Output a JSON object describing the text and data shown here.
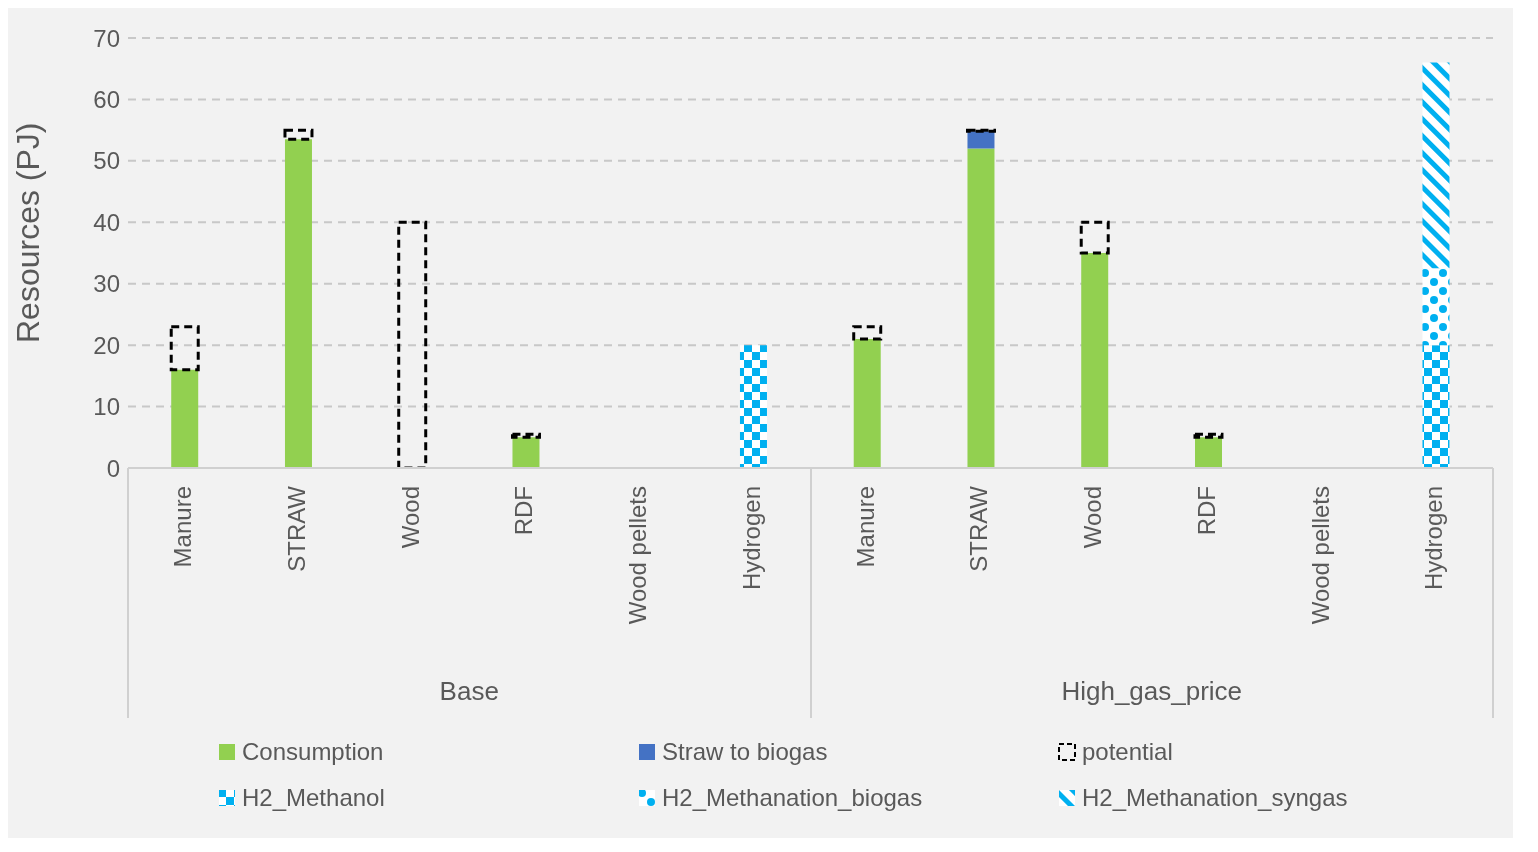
{
  "chart_data": {
    "type": "bar",
    "stacked": true,
    "ylabel": "Resources (PJ)",
    "categories": [
      "Manure",
      "STRAW",
      "Wood",
      "RDF",
      "Wood pellets",
      "Hydrogen",
      "Manure",
      "STRAW",
      "Wood",
      "RDF",
      "Wood pellets",
      "Hydrogen"
    ],
    "series": [
      {
        "name": "Consumption",
        "color": "#92d050",
        "values": [
          16,
          53.5,
          0,
          5,
          0,
          0,
          21,
          52,
          35,
          5,
          0,
          0
        ]
      },
      {
        "name": "Straw to biogas",
        "color": "#4472c4",
        "values": [
          0,
          0,
          0,
          0,
          0,
          0,
          0,
          2.8,
          0,
          0,
          0,
          0
        ]
      },
      {
        "name": "potential",
        "color": "#000000",
        "line_style": "dashed",
        "values": [
          7,
          1.5,
          40,
          0.5,
          0,
          0,
          2,
          0.2,
          5,
          0.5,
          0,
          0
        ]
      },
      {
        "name": "H2_Methanol",
        "color": "#00b0f0",
        "values": [
          0,
          0,
          0,
          0,
          0,
          20,
          0,
          0,
          0,
          0,
          0,
          20
        ]
      },
      {
        "name": "H2_Methanation_biogas",
        "color": "#00b0f0",
        "values": [
          0,
          0,
          0,
          0,
          0,
          0,
          0,
          0,
          0,
          0,
          0,
          12.5
        ]
      },
      {
        "name": "H2_Methanation_syngas",
        "color": "#00b0f0",
        "values": [
          0,
          0,
          0,
          0,
          0,
          0,
          0,
          0,
          0,
          0,
          0,
          33.5
        ]
      }
    ],
    "annotations": [
      "Base",
      "High_gas_price"
    ],
    "ylim": [
      0,
      70
    ],
    "yticks": [
      0,
      10,
      20,
      30,
      40,
      50,
      60,
      70
    ],
    "grid": "y",
    "legend": "bottom"
  }
}
